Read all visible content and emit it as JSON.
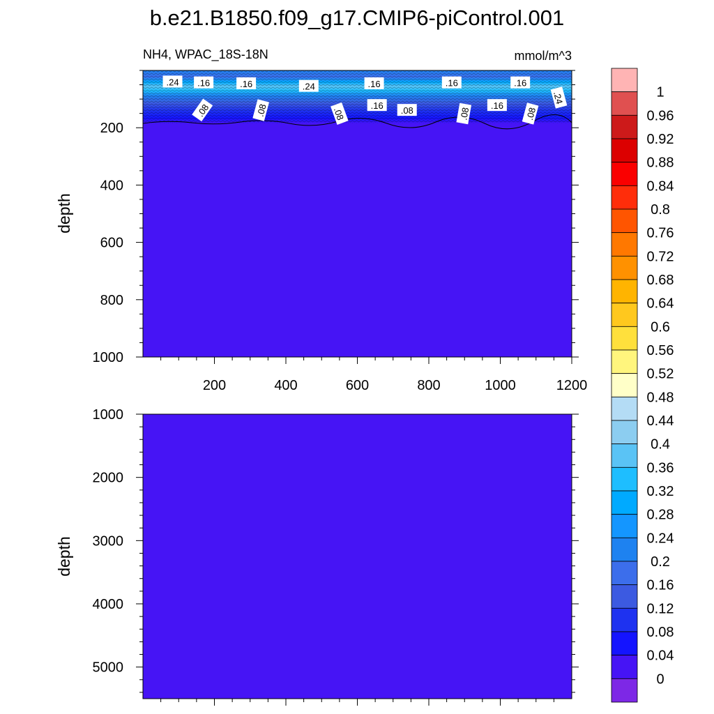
{
  "figure": {
    "title": "b.e21.B1850.f09_g17.CMIP6-piControl.001",
    "subtitle_left": "NH4, WPAC_18S-18N",
    "subtitle_right": "mmol/m^3"
  },
  "chart_data": [
    {
      "type": "heatmap",
      "panel": "upper",
      "ylabel": "depth",
      "xlim": [
        0,
        1200
      ],
      "ylim": [
        1000,
        0
      ],
      "x_ticks": [
        200,
        400,
        600,
        800,
        1000,
        1200
      ],
      "y_ticks": [
        200,
        400,
        600,
        800,
        1000
      ],
      "contour_labels": [
        {
          "text": ".24",
          "x": 83,
          "y": 40,
          "rotation": 0
        },
        {
          "text": ".16",
          "x": 170,
          "y": 43,
          "rotation": 0
        },
        {
          "text": ".16",
          "x": 289,
          "y": 46,
          "rotation": 0
        },
        {
          "text": ".24",
          "x": 464,
          "y": 55,
          "rotation": 0
        },
        {
          "text": ".16",
          "x": 647,
          "y": 46,
          "rotation": 0
        },
        {
          "text": ".16",
          "x": 864,
          "y": 43,
          "rotation": 0
        },
        {
          "text": ".16",
          "x": 1056,
          "y": 43,
          "rotation": 0
        },
        {
          "text": ".24",
          "x": 1163,
          "y": 95,
          "rotation": 75
        },
        {
          "text": ".08",
          "x": 167,
          "y": 139,
          "rotation": -55
        },
        {
          "text": ".08",
          "x": 331,
          "y": 139,
          "rotation": -75
        },
        {
          "text": ".08",
          "x": 549,
          "y": 151,
          "rotation": 70
        },
        {
          "text": ".16",
          "x": 655,
          "y": 122,
          "rotation": 0
        },
        {
          "text": ".08",
          "x": 739,
          "y": 139,
          "rotation": 0
        },
        {
          "text": ".08",
          "x": 899,
          "y": 151,
          "rotation": -80
        },
        {
          "text": ".16",
          "x": 991,
          "y": 122,
          "rotation": 0
        },
        {
          "text": ".08",
          "x": 1085,
          "y": 151,
          "rotation": -75
        }
      ]
    },
    {
      "type": "heatmap",
      "panel": "lower",
      "ylabel": "depth",
      "xlim": [
        0,
        1200
      ],
      "ylim": [
        1000,
        5500
      ],
      "y_ticks": [
        1000,
        2000,
        3000,
        4000,
        5000
      ],
      "fill_value_range": [
        0,
        0.04
      ]
    }
  ],
  "colorbar": {
    "labels": [
      "1",
      "0.96",
      "0.92",
      "0.88",
      "0.84",
      "0.8",
      "0.76",
      "0.72",
      "0.68",
      "0.64",
      "0.6",
      "0.56",
      "0.52",
      "0.48",
      "0.44",
      "0.4",
      "0.36",
      "0.32",
      "0.28",
      "0.24",
      "0.2",
      "0.16",
      "0.12",
      "0.08",
      "0.04",
      "0"
    ],
    "colors_top_to_bottom": [
      "#ffb4b4",
      "#e05050",
      "#cd1a1a",
      "#dc0000",
      "#fa0000",
      "#ff2d0a",
      "#ff5500",
      "#ff7800",
      "#ff9100",
      "#ffb400",
      "#ffc81e",
      "#ffe03c",
      "#fff57d",
      "#ffffc8",
      "#b4dcf5",
      "#8ccdf0",
      "#5ac3f5",
      "#1ebeff",
      "#00aaff",
      "#1496ff",
      "#1e82f0",
      "#3c6eeb",
      "#3c5ae1",
      "#1e32f0",
      "#1414ff",
      "#4614f5",
      "#7d28e6"
    ]
  }
}
